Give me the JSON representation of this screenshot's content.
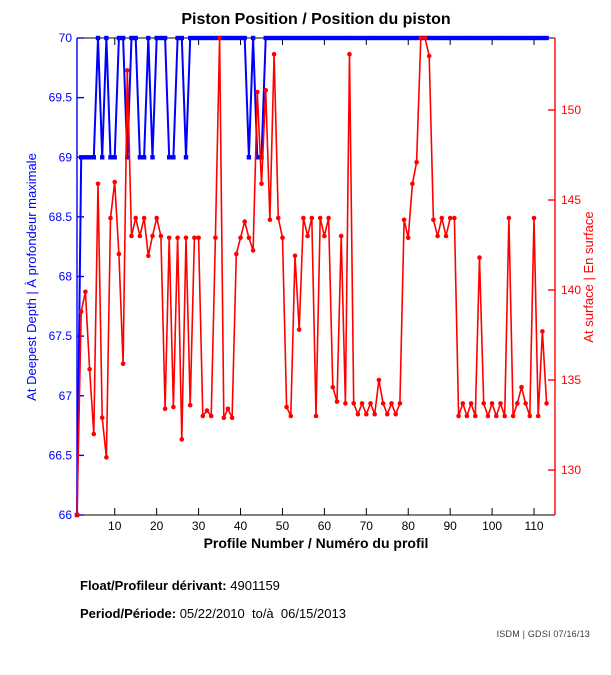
{
  "title": "Piston Position / Position du piston",
  "x_axis": {
    "label": "Profile Number / Numéro du profil",
    "ticks": [
      10,
      20,
      30,
      40,
      50,
      60,
      70,
      80,
      90,
      100,
      110
    ],
    "color": "#000000"
  },
  "left_axis": {
    "label": "At Deepest Depth | À profondeur maximale",
    "ticks": [
      66,
      66.5,
      67,
      67.5,
      68,
      68.5,
      69,
      69.5,
      70
    ],
    "color": "#0000ff"
  },
  "right_axis": {
    "label": "At surface | En surface",
    "ticks": [
      130,
      135,
      140,
      145,
      150
    ],
    "color": "#ff0000"
  },
  "footer": {
    "float_label": "Float/Profileur dérivant:",
    "float_value": " 4901159",
    "period_label": "Period/Période:",
    "period_value": " 05/22/2010  to/à  06/15/2013"
  },
  "watermark": "ISDM | GDSI 07/16/13",
  "chart_data": {
    "type": "line",
    "title": "Piston Position / Position du piston",
    "xlabel": "Profile Number / Numéro du profil",
    "x_range": [
      1,
      115
    ],
    "left_ylim": [
      66,
      70
    ],
    "right_ylim": [
      127.5,
      154
    ],
    "grid": false,
    "legend": "none",
    "x": [
      1,
      2,
      3,
      4,
      5,
      6,
      7,
      8,
      9,
      10,
      11,
      12,
      13,
      14,
      15,
      16,
      17,
      18,
      19,
      20,
      21,
      22,
      23,
      24,
      25,
      26,
      27,
      28,
      29,
      30,
      31,
      32,
      33,
      34,
      35,
      36,
      37,
      38,
      39,
      40,
      41,
      42,
      43,
      44,
      45,
      46,
      47,
      48,
      49,
      50,
      51,
      52,
      53,
      54,
      55,
      56,
      57,
      58,
      59,
      60,
      61,
      62,
      63,
      64,
      65,
      66,
      67,
      68,
      69,
      70,
      71,
      72,
      73,
      74,
      75,
      76,
      77,
      78,
      79,
      80,
      81,
      82,
      83,
      84,
      85,
      86,
      87,
      88,
      89,
      90,
      91,
      92,
      93,
      94,
      95,
      96,
      97,
      98,
      99,
      100,
      101,
      102,
      103,
      104,
      105,
      106,
      107,
      108,
      109,
      110,
      111,
      112,
      113
    ],
    "series": [
      {
        "name": "At Deepest Depth | À profondeur maximale",
        "axis": "left",
        "color": "#0000ff",
        "marker": "square",
        "values": [
          66,
          69,
          69,
          69,
          69,
          70,
          69,
          70,
          69,
          69,
          70,
          70,
          69,
          70,
          70,
          69,
          69,
          70,
          69,
          70,
          70,
          70,
          69,
          69,
          70,
          70,
          69,
          70,
          70,
          70,
          70,
          70,
          70,
          70,
          70,
          70,
          70,
          70,
          70,
          70,
          70,
          69,
          70,
          69,
          69,
          70,
          70,
          70,
          70,
          70,
          70,
          70,
          70,
          70,
          70,
          70,
          70,
          70,
          70,
          70,
          70,
          70,
          70,
          70,
          70,
          70,
          70,
          70,
          70,
          70,
          70,
          70,
          70,
          70,
          70,
          70,
          70,
          70,
          70,
          70,
          70,
          70,
          70,
          70,
          70,
          70,
          70,
          70,
          70,
          70,
          70,
          70,
          70,
          70,
          70,
          70,
          70,
          70,
          70,
          70,
          70,
          70,
          70,
          70,
          70,
          70,
          70,
          70,
          70,
          70,
          70,
          70,
          70
        ]
      },
      {
        "name": "At surface | En surface",
        "axis": "right",
        "color": "#ff0000",
        "marker": "circle",
        "values": [
          127.5,
          138.8,
          139.9,
          135.6,
          132.0,
          145.9,
          132.9,
          130.7,
          144.0,
          146.0,
          142.0,
          135.9,
          152.2,
          143.0,
          144.0,
          143.0,
          144.0,
          141.9,
          143.0,
          144.0,
          143.0,
          133.4,
          142.9,
          133.5,
          142.9,
          131.7,
          142.9,
          133.6,
          142.9,
          142.9,
          133.0,
          133.3,
          133.0,
          142.9,
          154.0,
          132.9,
          133.4,
          132.9,
          142.0,
          142.9,
          143.8,
          142.9,
          142.2,
          151.0,
          145.9,
          151.1,
          143.9,
          153.1,
          144.0,
          142.9,
          133.5,
          133.0,
          141.9,
          137.8,
          144.0,
          143.0,
          144.0,
          133.0,
          144.0,
          143.0,
          144.0,
          134.6,
          133.8,
          143.0,
          133.7,
          153.1,
          133.7,
          133.1,
          133.7,
          133.1,
          133.7,
          133.1,
          135.0,
          133.7,
          133.1,
          133.7,
          133.1,
          133.7,
          143.9,
          142.9,
          145.9,
          147.1,
          154.0,
          154.0,
          153.0,
          143.9,
          143.0,
          144.0,
          143.0,
          144.0,
          144.0,
          133.0,
          133.7,
          133.0,
          133.7,
          133.0,
          141.8,
          133.7,
          133.0,
          133.7,
          133.0,
          133.7,
          133.0,
          144.0,
          133.0,
          133.7,
          134.6,
          133.7,
          133.0,
          144.0,
          133.0,
          137.7,
          133.7
        ]
      }
    ]
  }
}
